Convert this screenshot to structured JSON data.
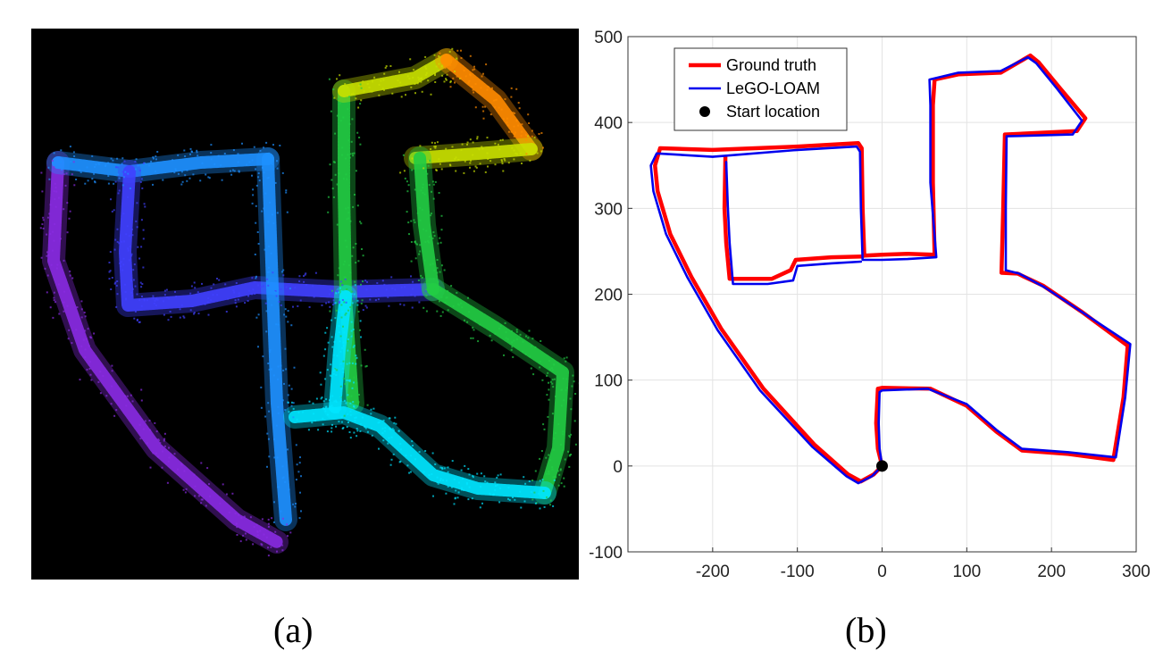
{
  "panel_a": {
    "caption": "(a)",
    "colors": [
      "#8a2be2",
      "#4040ff",
      "#1e90ff",
      "#00e5ff",
      "#22cc44",
      "#c8e000",
      "#ff8c00"
    ]
  },
  "panel_b": {
    "caption": "(b)"
  },
  "chart_data": {
    "type": "line",
    "title": "",
    "xlabel": "",
    "ylabel": "",
    "xlim": [
      -300,
      300
    ],
    "ylim": [
      -100,
      500
    ],
    "xticks": [
      -200,
      -100,
      0,
      100,
      200,
      300
    ],
    "yticks": [
      -100,
      0,
      100,
      200,
      300,
      400,
      500
    ],
    "grid": true,
    "legend_position": "top-left",
    "series": [
      {
        "name": "Ground truth",
        "color": "#ff0000",
        "points": [
          [
            0,
            0
          ],
          [
            -10,
            -10
          ],
          [
            -25,
            -18
          ],
          [
            -40,
            -10
          ],
          [
            -80,
            25
          ],
          [
            -140,
            90
          ],
          [
            -190,
            160
          ],
          [
            -225,
            220
          ],
          [
            -250,
            270
          ],
          [
            -265,
            320
          ],
          [
            -268,
            350
          ],
          [
            -262,
            370
          ],
          [
            -200,
            368
          ],
          [
            -100,
            372
          ],
          [
            -28,
            376
          ],
          [
            -24,
            370
          ],
          [
            -23,
            300
          ],
          [
            -21,
            245
          ],
          [
            0,
            246
          ],
          [
            30,
            247
          ],
          [
            62,
            246
          ],
          [
            60,
            330
          ],
          [
            60,
            420
          ],
          [
            62,
            450
          ],
          [
            90,
            456
          ],
          [
            140,
            458
          ],
          [
            175,
            478
          ],
          [
            185,
            470
          ],
          [
            210,
            440
          ],
          [
            240,
            405
          ],
          [
            230,
            390
          ],
          [
            145,
            386
          ],
          [
            143,
            300
          ],
          [
            141,
            225
          ],
          [
            160,
            224
          ],
          [
            190,
            210
          ],
          [
            235,
            180
          ],
          [
            290,
            140
          ],
          [
            285,
            80
          ],
          [
            273,
            7
          ],
          [
            220,
            14
          ],
          [
            165,
            18
          ],
          [
            135,
            40
          ],
          [
            100,
            70
          ],
          [
            57,
            90
          ],
          [
            0,
            91
          ],
          [
            -5,
            90
          ],
          [
            -7,
            50
          ],
          [
            -5,
            20
          ],
          [
            0,
            0
          ]
        ]
      },
      {
        "name": "Ground truth",
        "color": "#ff0000",
        "points": [
          [
            -23,
            244
          ],
          [
            -60,
            243
          ],
          [
            -102,
            240
          ],
          [
            -108,
            228
          ],
          [
            -130,
            218
          ],
          [
            -180,
            218
          ],
          [
            -184,
            260
          ],
          [
            -186,
            300
          ],
          [
            -185,
            360
          ]
        ]
      },
      {
        "name": "LeGO-LOAM",
        "color": "#0000ee",
        "points": [
          [
            0,
            0
          ],
          [
            -12,
            -12
          ],
          [
            -28,
            -20
          ],
          [
            -42,
            -12
          ],
          [
            -82,
            22
          ],
          [
            -144,
            88
          ],
          [
            -194,
            158
          ],
          [
            -230,
            220
          ],
          [
            -255,
            270
          ],
          [
            -270,
            320
          ],
          [
            -273,
            350
          ],
          [
            -266,
            364
          ],
          [
            -200,
            360
          ],
          [
            -100,
            368
          ],
          [
            -30,
            372
          ],
          [
            -26,
            366
          ],
          [
            -25,
            300
          ],
          [
            -23,
            240
          ],
          [
            0,
            240
          ],
          [
            30,
            241
          ],
          [
            64,
            243
          ],
          [
            57,
            330
          ],
          [
            57,
            420
          ],
          [
            56,
            450
          ],
          [
            90,
            458
          ],
          [
            140,
            460
          ],
          [
            172,
            476
          ],
          [
            182,
            469
          ],
          [
            206,
            440
          ],
          [
            236,
            402
          ],
          [
            225,
            386
          ],
          [
            147,
            384
          ],
          [
            146,
            300
          ],
          [
            146,
            228
          ],
          [
            162,
            224
          ],
          [
            192,
            208
          ],
          [
            238,
            178
          ],
          [
            293,
            142
          ],
          [
            287,
            80
          ],
          [
            276,
            10
          ],
          [
            220,
            16
          ],
          [
            165,
            20
          ],
          [
            135,
            42
          ],
          [
            100,
            72
          ],
          [
            54,
            90
          ],
          [
            0,
            88
          ],
          [
            -3,
            86
          ],
          [
            -4,
            50
          ],
          [
            -3,
            20
          ],
          [
            0,
            0
          ]
        ]
      },
      {
        "name": "LeGO-LOAM",
        "color": "#0000ee",
        "points": [
          [
            -25,
            238
          ],
          [
            -60,
            236
          ],
          [
            -100,
            233
          ],
          [
            -105,
            216
          ],
          [
            -135,
            212
          ],
          [
            -176,
            212
          ],
          [
            -180,
            260
          ],
          [
            -182,
            300
          ],
          [
            -184,
            354
          ]
        ]
      },
      {
        "name": "Start location",
        "type": "scatter",
        "color": "#000000",
        "points": [
          [
            0,
            0
          ]
        ]
      }
    ],
    "legend": [
      {
        "label": "Ground truth",
        "color": "#ff0000",
        "kind": "line"
      },
      {
        "label": "LeGO-LOAM",
        "color": "#0000ee",
        "kind": "line"
      },
      {
        "label": "Start location",
        "color": "#000000",
        "kind": "marker"
      }
    ]
  }
}
